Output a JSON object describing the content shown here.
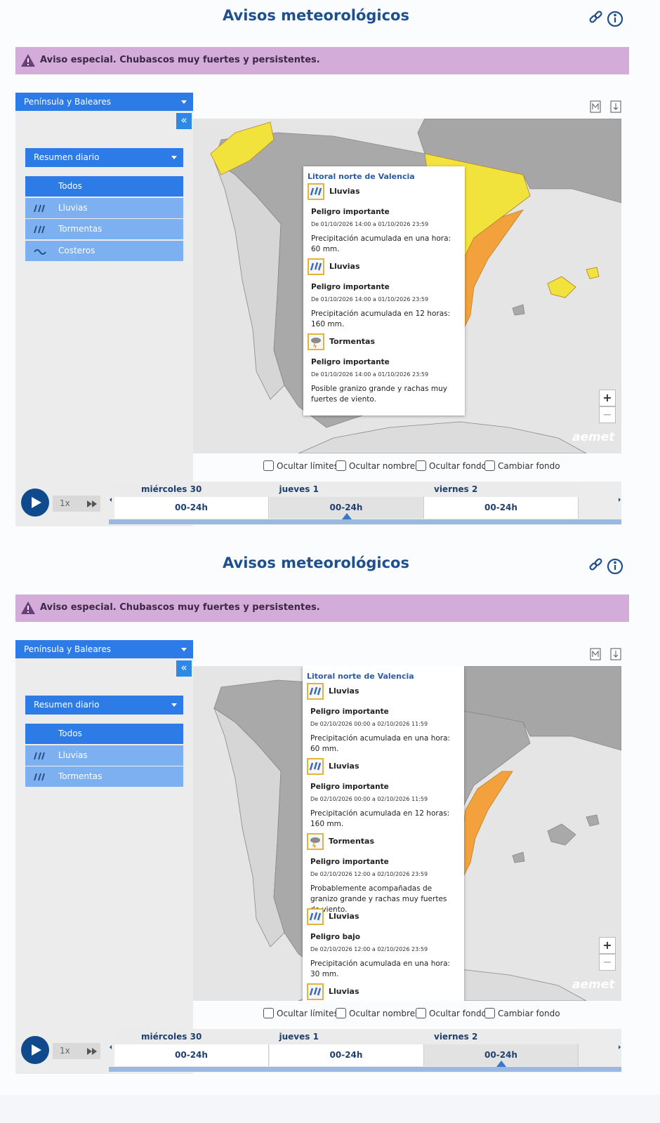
{
  "panels": [
    {
      "title": "Avisos meteorológicos",
      "alert": "Aviso especial. Chubascos muy fuertes y persistentes.",
      "region_select": "Península y Baleares",
      "collapse": "«",
      "summary_select": "Resumen diario",
      "filters": [
        "Todos",
        "Lluvias",
        "Tormentas",
        "Costeros"
      ],
      "popup": {
        "zone": "Litoral norte de Valencia",
        "warnings": [
          {
            "phenomenon": "Lluvias",
            "level": "Peligro importante",
            "period": "De 01/10/2026 14:00 a 01/10/2026 23:59",
            "description": "Precipitación acumulada en una hora: 60 mm."
          },
          {
            "phenomenon": "Lluvias",
            "level": "Peligro importante",
            "period": "De 01/10/2026 14:00 a 01/10/2026 23:59",
            "description": "Precipitación acumulada en 12 horas: 160 mm."
          },
          {
            "phenomenon": "Tormentas",
            "level": "Peligro importante",
            "period": "De 01/10/2026 14:00 a 01/10/2026 23:59",
            "description": "Posible granizo grande y rachas muy fuertes de viento."
          }
        ]
      },
      "zoom": [
        "+",
        "−"
      ],
      "logo": "aemet",
      "checkboxes": [
        "Ocultar límites",
        "Ocultar nombres",
        "Ocultar fondo",
        "Cambiar fondo"
      ],
      "speed": "1x",
      "days": [
        {
          "day": "miércoles 30",
          "range": "00-24h",
          "selected": false
        },
        {
          "day": "jueves 1",
          "range": "00-24h",
          "selected": true
        },
        {
          "day": "viernes 2",
          "range": "00-24h",
          "selected": false
        }
      ]
    },
    {
      "title": "Avisos meteorológicos",
      "alert": "Aviso especial. Chubascos muy fuertes y persistentes.",
      "region_select": "Península y Baleares",
      "collapse": "«",
      "summary_select": "Resumen diario",
      "filters": [
        "Todos",
        "Lluvias",
        "Tormentas"
      ],
      "popup": {
        "zone": "Litoral norte de Valencia",
        "warnings": [
          {
            "phenomenon": "Lluvias",
            "level": "Peligro importante",
            "period": "De 02/10/2026 00:00 a 02/10/2026 11:59",
            "description": "Precipitación acumulada en una hora: 60 mm."
          },
          {
            "phenomenon": "Lluvias",
            "level": "Peligro importante",
            "period": "De 02/10/2026 00:00 a 02/10/2026 11:59",
            "description": "Precipitación acumulada en 12 horas: 160 mm."
          },
          {
            "phenomenon": "Tormentas",
            "level": "Peligro importante",
            "period": "De 02/10/2026 12:00 a 02/10/2026 23:59",
            "description": "Probablemente acompañadas de granizo grande y rachas muy fuertes de viento."
          },
          {
            "phenomenon": "Lluvias",
            "level": "Peligro bajo",
            "period": "De 02/10/2026 12:00 a 02/10/2026 23:59",
            "description": "Precipitación acumulada en una hora: 30 mm."
          },
          {
            "phenomenon": "Lluvias"
          }
        ]
      },
      "zoom": [
        "+",
        "−"
      ],
      "logo": "aemet",
      "checkboxes": [
        "Ocultar límites",
        "Ocultar nombres",
        "Ocultar fondo",
        "Cambiar fondo"
      ],
      "speed": "1x",
      "days": [
        {
          "day": "miércoles 30",
          "range": "00-24h",
          "selected": false
        },
        {
          "day": "jueves 1",
          "range": "00-24h",
          "selected": false
        },
        {
          "day": "viernes 2",
          "range": "00-24h",
          "selected": true
        }
      ]
    }
  ]
}
